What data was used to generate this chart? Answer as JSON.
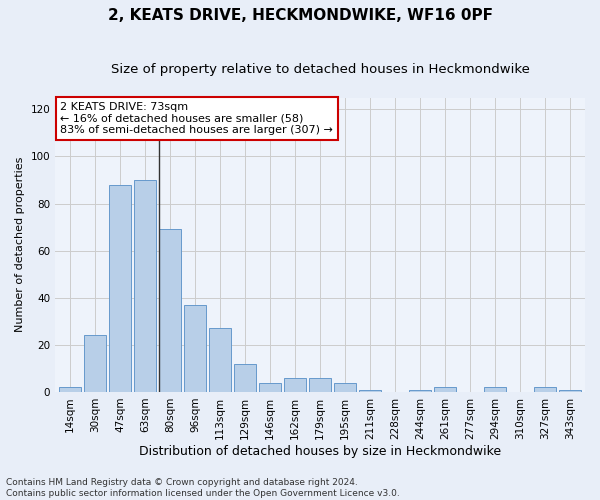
{
  "title": "2, KEATS DRIVE, HECKMONDWIKE, WF16 0PF",
  "subtitle": "Size of property relative to detached houses in Heckmondwike",
  "xlabel": "Distribution of detached houses by size in Heckmondwike",
  "ylabel": "Number of detached properties",
  "categories": [
    "14sqm",
    "30sqm",
    "47sqm",
    "63sqm",
    "80sqm",
    "96sqm",
    "113sqm",
    "129sqm",
    "146sqm",
    "162sqm",
    "179sqm",
    "195sqm",
    "211sqm",
    "228sqm",
    "244sqm",
    "261sqm",
    "277sqm",
    "294sqm",
    "310sqm",
    "327sqm",
    "343sqm"
  ],
  "values": [
    2,
    24,
    88,
    90,
    69,
    37,
    27,
    12,
    4,
    6,
    6,
    4,
    1,
    0,
    1,
    2,
    0,
    2,
    0,
    2,
    1
  ],
  "bar_color": "#b8cfe8",
  "bar_edge_color": "#6699cc",
  "annotation_text_line1": "2 KEATS DRIVE: 73sqm",
  "annotation_text_line2": "← 16% of detached houses are smaller (58)",
  "annotation_text_line3": "83% of semi-detached houses are larger (307) →",
  "annotation_box_facecolor": "#ffffff",
  "annotation_box_edgecolor": "#cc0000",
  "vline_color": "#333333",
  "ylim": [
    0,
    125
  ],
  "yticks": [
    0,
    20,
    40,
    60,
    80,
    100,
    120
  ],
  "grid_color": "#cccccc",
  "footnote_line1": "Contains HM Land Registry data © Crown copyright and database right 2024.",
  "footnote_line2": "Contains public sector information licensed under the Open Government Licence v3.0.",
  "bg_color": "#e8eef8",
  "plot_bg_color": "#eef3fb",
  "title_fontsize": 11,
  "subtitle_fontsize": 9.5,
  "xlabel_fontsize": 9,
  "ylabel_fontsize": 8,
  "tick_fontsize": 7.5,
  "footnote_fontsize": 6.5,
  "annotation_fontsize": 8
}
